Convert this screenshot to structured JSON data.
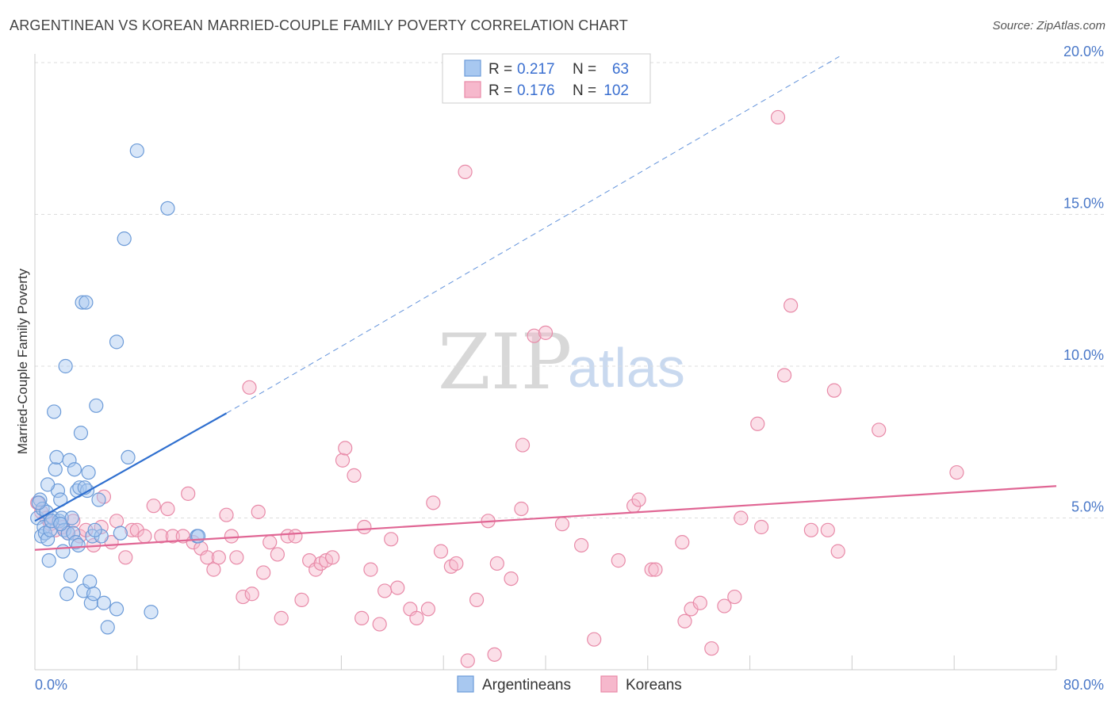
{
  "header": {
    "title": "ARGENTINEAN VS KOREAN MARRIED-COUPLE FAMILY POVERTY CORRELATION CHART",
    "source": "Source: ZipAtlas.com"
  },
  "watermark": {
    "zip": "ZIP",
    "atlas": "atlas"
  },
  "legend_top": {
    "rows": [
      {
        "r_label": "R =",
        "r_value": "0.217",
        "n_label": "N =",
        "n_value": "63"
      },
      {
        "r_label": "R =",
        "r_value": "0.176",
        "n_label": "N =",
        "n_value": "102"
      }
    ]
  },
  "legend_bottom": {
    "items": [
      {
        "label": "Argentineans"
      },
      {
        "label": "Koreans"
      }
    ]
  },
  "colors": {
    "argentinean_fill": "#a8c8f0",
    "argentinean_stroke": "#6c9bd8",
    "argentinean_line": "#2f6fcf",
    "korean_fill": "#f6b8cc",
    "korean_stroke": "#e88aa8",
    "korean_line": "#e06694",
    "tick_label": "#4a78c8",
    "grid": "#dddddd"
  },
  "chart_data": {
    "type": "scatter",
    "title": "ARGENTINEAN VS KOREAN MARRIED-COUPLE FAMILY POVERTY CORRELATION CHART",
    "xlabel": "",
    "ylabel": "Married-Couple Family Poverty",
    "xlim": [
      0,
      80
    ],
    "ylim": [
      0,
      20
    ],
    "x_tick_labels": [
      "0.0%",
      "80.0%"
    ],
    "y_ticks": [
      5,
      10,
      15,
      20
    ],
    "y_tick_labels": [
      "5.0%",
      "10.0%",
      "15.0%",
      "20.0%"
    ],
    "grid": true,
    "legend_position": "top-center",
    "series": [
      {
        "name": "Argentineans",
        "R": 0.217,
        "N": 63,
        "trend": {
          "x0": 0.0,
          "y0": 4.9,
          "x1": 15.0,
          "y1": 8.45,
          "dashed_to_x": 63.0,
          "dashed_to_y": 20.2
        },
        "points": [
          [
            0.2,
            5.0
          ],
          [
            0.4,
            5.6
          ],
          [
            0.5,
            4.4
          ],
          [
            0.6,
            5.3
          ],
          [
            0.7,
            4.7
          ],
          [
            0.8,
            4.5
          ],
          [
            0.9,
            5.2
          ],
          [
            1.0,
            4.3
          ],
          [
            1.1,
            3.6
          ],
          [
            1.2,
            4.6
          ],
          [
            1.4,
            5.0
          ],
          [
            1.5,
            8.5
          ],
          [
            1.6,
            6.6
          ],
          [
            1.7,
            7.0
          ],
          [
            1.8,
            5.9
          ],
          [
            1.9,
            4.9
          ],
          [
            2.0,
            5.6
          ],
          [
            2.1,
            5.0
          ],
          [
            2.2,
            3.9
          ],
          [
            2.3,
            4.6
          ],
          [
            2.4,
            10.0
          ],
          [
            2.5,
            2.5
          ],
          [
            2.6,
            4.5
          ],
          [
            2.7,
            6.9
          ],
          [
            2.8,
            3.1
          ],
          [
            3.0,
            4.5
          ],
          [
            3.1,
            6.6
          ],
          [
            3.2,
            4.2
          ],
          [
            3.3,
            5.9
          ],
          [
            3.4,
            4.1
          ],
          [
            3.5,
            6.0
          ],
          [
            3.6,
            7.8
          ],
          [
            3.7,
            12.1
          ],
          [
            3.8,
            2.6
          ],
          [
            4.0,
            12.1
          ],
          [
            4.1,
            5.9
          ],
          [
            4.2,
            6.5
          ],
          [
            4.3,
            2.9
          ],
          [
            4.4,
            2.2
          ],
          [
            4.5,
            4.4
          ],
          [
            4.6,
            2.5
          ],
          [
            4.8,
            8.7
          ],
          [
            5.0,
            5.6
          ],
          [
            5.4,
            2.2
          ],
          [
            5.7,
            1.4
          ],
          [
            6.4,
            10.8
          ],
          [
            6.4,
            2.0
          ],
          [
            6.7,
            4.5
          ],
          [
            7.0,
            14.2
          ],
          [
            7.3,
            7.0
          ],
          [
            8.0,
            17.1
          ],
          [
            9.1,
            1.9
          ],
          [
            10.4,
            15.2
          ],
          [
            12.7,
            4.4
          ],
          [
            12.8,
            4.4
          ],
          [
            5.2,
            4.4
          ],
          [
            3.9,
            6.0
          ],
          [
            2.9,
            5.0
          ],
          [
            1.3,
            4.9
          ],
          [
            0.3,
            5.5
          ],
          [
            1.0,
            6.1
          ],
          [
            2.0,
            4.8
          ],
          [
            4.7,
            4.6
          ]
        ]
      },
      {
        "name": "Koreans",
        "R": 0.176,
        "N": 102,
        "trend": {
          "x0": 0.0,
          "y0": 3.95,
          "x1": 80.0,
          "y1": 6.05
        },
        "points": [
          [
            0.2,
            5.5
          ],
          [
            0.5,
            5.2
          ],
          [
            0.9,
            5.0
          ],
          [
            1.2,
            4.8
          ],
          [
            1.6,
            4.6
          ],
          [
            2.2,
            4.7
          ],
          [
            2.6,
            4.5
          ],
          [
            3.0,
            4.9
          ],
          [
            3.5,
            4.4
          ],
          [
            4.0,
            4.6
          ],
          [
            4.6,
            4.1
          ],
          [
            5.2,
            4.7
          ],
          [
            5.4,
            5.7
          ],
          [
            6.0,
            4.2
          ],
          [
            6.4,
            4.9
          ],
          [
            7.1,
            3.7
          ],
          [
            7.6,
            4.6
          ],
          [
            8.0,
            4.6
          ],
          [
            8.6,
            4.4
          ],
          [
            9.3,
            5.4
          ],
          [
            9.9,
            4.4
          ],
          [
            10.4,
            5.3
          ],
          [
            10.8,
            4.4
          ],
          [
            11.6,
            4.4
          ],
          [
            12.0,
            5.8
          ],
          [
            12.4,
            4.2
          ],
          [
            13.0,
            4.0
          ],
          [
            13.5,
            3.7
          ],
          [
            14.0,
            3.3
          ],
          [
            14.4,
            3.7
          ],
          [
            15.0,
            5.1
          ],
          [
            15.4,
            4.4
          ],
          [
            15.8,
            3.7
          ],
          [
            16.3,
            2.4
          ],
          [
            16.8,
            9.3
          ],
          [
            17.0,
            2.5
          ],
          [
            17.5,
            5.2
          ],
          [
            17.9,
            3.2
          ],
          [
            18.4,
            4.2
          ],
          [
            19.0,
            3.8
          ],
          [
            19.3,
            1.7
          ],
          [
            19.8,
            4.4
          ],
          [
            20.4,
            4.4
          ],
          [
            20.9,
            2.3
          ],
          [
            21.5,
            3.6
          ],
          [
            22.0,
            3.3
          ],
          [
            22.4,
            3.5
          ],
          [
            22.8,
            3.6
          ],
          [
            23.3,
            3.7
          ],
          [
            24.1,
            6.9
          ],
          [
            24.3,
            7.3
          ],
          [
            25.0,
            6.4
          ],
          [
            25.6,
            1.7
          ],
          [
            25.8,
            4.7
          ],
          [
            26.3,
            3.3
          ],
          [
            27.0,
            1.5
          ],
          [
            27.4,
            2.6
          ],
          [
            27.9,
            4.3
          ],
          [
            28.4,
            2.7
          ],
          [
            29.4,
            2.0
          ],
          [
            29.9,
            1.7
          ],
          [
            30.8,
            2.0
          ],
          [
            31.2,
            5.5
          ],
          [
            31.8,
            3.9
          ],
          [
            32.6,
            3.4
          ],
          [
            33.0,
            3.5
          ],
          [
            33.7,
            16.4
          ],
          [
            33.9,
            0.3
          ],
          [
            34.6,
            2.3
          ],
          [
            35.5,
            4.9
          ],
          [
            36.0,
            0.5
          ],
          [
            36.2,
            3.5
          ],
          [
            37.3,
            3.0
          ],
          [
            38.1,
            5.3
          ],
          [
            38.2,
            7.4
          ],
          [
            39.1,
            11.0
          ],
          [
            40.0,
            11.1
          ],
          [
            41.3,
            4.8
          ],
          [
            42.8,
            4.1
          ],
          [
            43.8,
            1.0
          ],
          [
            45.7,
            3.6
          ],
          [
            46.9,
            5.4
          ],
          [
            47.3,
            5.6
          ],
          [
            48.3,
            3.3
          ],
          [
            48.6,
            3.3
          ],
          [
            50.7,
            4.2
          ],
          [
            50.9,
            1.6
          ],
          [
            51.4,
            2.0
          ],
          [
            52.1,
            2.2
          ],
          [
            53.0,
            0.7
          ],
          [
            54.0,
            2.1
          ],
          [
            54.8,
            2.4
          ],
          [
            55.3,
            5.0
          ],
          [
            56.6,
            8.1
          ],
          [
            56.9,
            4.7
          ],
          [
            58.2,
            18.2
          ],
          [
            58.7,
            9.7
          ],
          [
            59.2,
            12.0
          ],
          [
            60.8,
            4.6
          ],
          [
            62.1,
            4.6
          ],
          [
            62.6,
            9.2
          ],
          [
            62.9,
            3.9
          ],
          [
            66.1,
            7.9
          ],
          [
            72.2,
            6.5
          ]
        ]
      }
    ]
  }
}
